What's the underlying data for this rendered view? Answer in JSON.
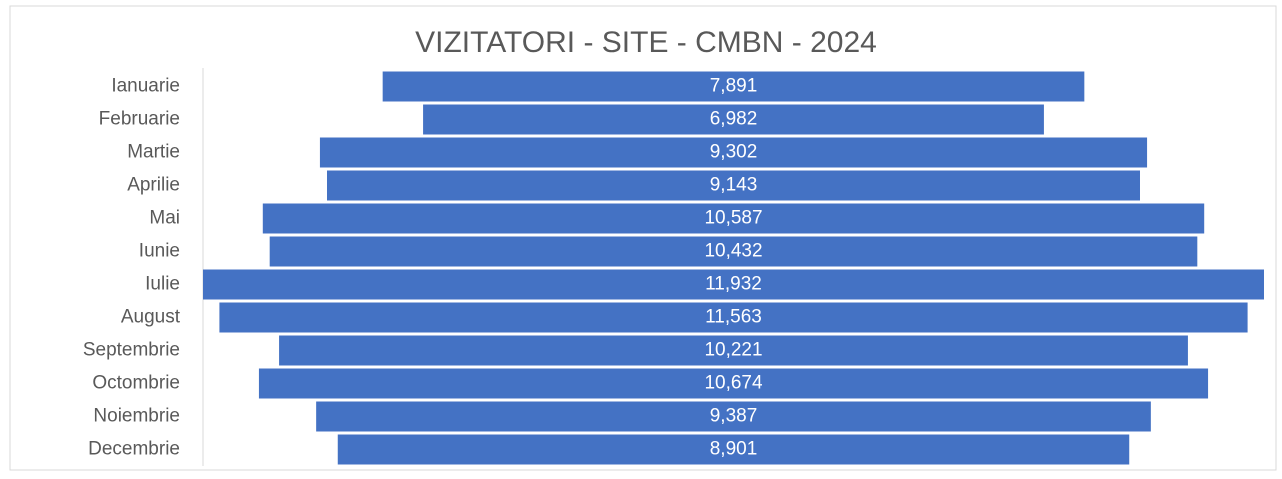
{
  "chart_data": {
    "type": "funnel",
    "title": "VIZITATORI - SITE - CMBN - 2024",
    "categories": [
      "Ianuarie",
      "Februarie",
      "Martie",
      "Aprilie",
      "Mai",
      "Iunie",
      "Iulie",
      "August",
      "Septembrie",
      "Octombrie",
      "Noiembrie",
      "Decembrie"
    ],
    "values": [
      7891,
      6982,
      9302,
      9143,
      10587,
      10432,
      11932,
      11563,
      10221,
      10674,
      9387,
      8901
    ],
    "value_labels": [
      "7,891",
      "6,982",
      "9,302",
      "9,143",
      "10,587",
      "10,432",
      "11,932",
      "11,563",
      "10,221",
      "10,674",
      "9,387",
      "8,901"
    ],
    "color": "#4472c4"
  }
}
